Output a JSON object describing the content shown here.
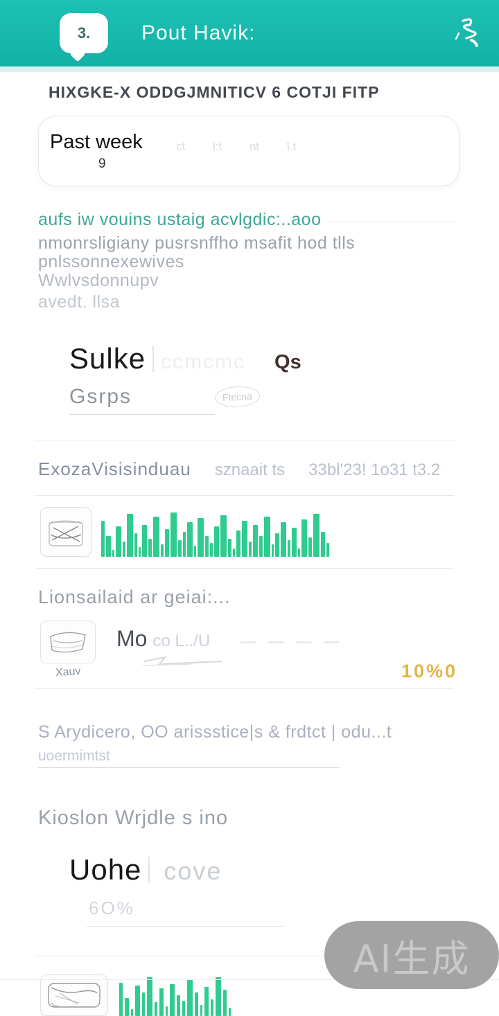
{
  "header": {
    "bubble": "3.",
    "title": "Pout Havik:",
    "bg_color": "#18b7ab"
  },
  "page": {
    "heading": "HIXGKE-X ODDGJMNITICV 6 COTJI FITP"
  },
  "filter_card": {
    "label": "Past week",
    "sub": "9",
    "glyphs": [
      "ct",
      "l:t",
      "nt",
      "l.t"
    ]
  },
  "intro": {
    "link": "aufs iw vouins ustaig acvlgdic:..aoo",
    "lines": [
      "nmonrsligiany pusrsnffho msafit hod tlls",
      "pnlssonnexewives",
      "Wwlvsdonnupv",
      "avedt. llsa"
    ]
  },
  "stat1": {
    "value": "Sulke",
    "ghost": "ccmcmc",
    "unit": "Qs",
    "label": "Gsrps",
    "tag": "Ftecna"
  },
  "meta_row": {
    "name": "ExozaVisisinduau",
    "mid": "sznaait ts",
    "right": "33bl'23! 1o31 t3.2"
  },
  "chart1": {
    "type": "bar",
    "color": "#2fcb8f",
    "bars": [
      [
        52,
        5
      ],
      [
        30,
        7
      ],
      [
        10,
        3
      ],
      [
        44,
        8
      ],
      [
        22,
        4
      ],
      [
        62,
        9
      ],
      [
        34,
        4
      ],
      [
        14,
        3
      ],
      [
        46,
        7
      ],
      [
        26,
        5
      ],
      [
        58,
        9
      ],
      [
        18,
        4
      ],
      [
        40,
        6
      ],
      [
        64,
        9
      ],
      [
        24,
        5
      ],
      [
        36,
        4
      ],
      [
        50,
        8
      ],
      [
        16,
        3
      ],
      [
        56,
        9
      ],
      [
        30,
        5
      ],
      [
        20,
        4
      ],
      [
        44,
        7
      ],
      [
        60,
        9
      ],
      [
        26,
        5
      ],
      [
        12,
        3
      ],
      [
        38,
        6
      ],
      [
        52,
        8
      ],
      [
        22,
        4
      ],
      [
        46,
        7
      ],
      [
        30,
        5
      ],
      [
        58,
        9
      ],
      [
        18,
        3
      ],
      [
        34,
        6
      ],
      [
        50,
        8
      ],
      [
        24,
        4
      ],
      [
        42,
        7
      ],
      [
        12,
        3
      ],
      [
        54,
        8
      ],
      [
        28,
        5
      ],
      [
        62,
        9
      ],
      [
        36,
        6
      ],
      [
        20,
        4
      ]
    ]
  },
  "section2": {
    "label": "Lionsailaid ar geiai:..."
  },
  "row2": {
    "caption": "Xauv",
    "title": "Mo",
    "extra": "co L../U",
    "dashes": "—  —    —   —",
    "badge": "10%0",
    "badge_color": "#e3b54a"
  },
  "text3": {
    "line1": "S Arydicero, OO arissstice|s & frdtct | odu...t",
    "line2": "uoermimtst"
  },
  "section3": {
    "label": "Kioslon Wrjdle s ino"
  },
  "stat2": {
    "value": "Uohe",
    "unit": "cove",
    "percent": "6O%"
  },
  "chart2": {
    "type": "bar",
    "color": "#2fcb8f",
    "bars": [
      [
        48,
        5
      ],
      [
        26,
        6
      ],
      [
        10,
        3
      ],
      [
        44,
        7
      ],
      [
        34,
        4
      ],
      [
        56,
        8
      ],
      [
        20,
        4
      ],
      [
        40,
        6
      ],
      [
        14,
        3
      ],
      [
        46,
        7
      ],
      [
        30,
        5
      ],
      [
        22,
        4
      ],
      [
        52,
        8
      ],
      [
        34,
        5
      ],
      [
        16,
        3
      ],
      [
        42,
        6
      ],
      [
        24,
        4
      ],
      [
        56,
        8
      ],
      [
        38,
        5
      ],
      [
        12,
        3
      ]
    ]
  },
  "watermark": {
    "label": "AI生成"
  }
}
